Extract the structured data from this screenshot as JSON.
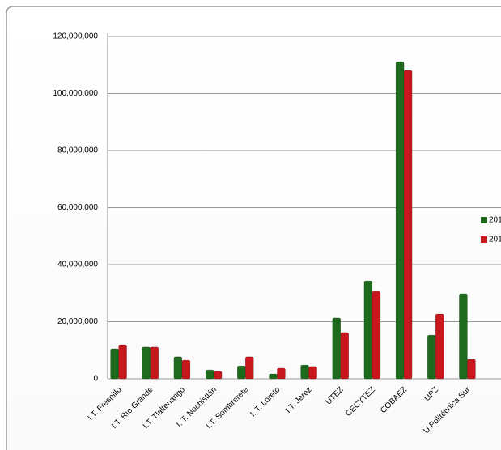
{
  "chart_data": {
    "type": "bar",
    "categories": [
      "I.T. Fresnillo",
      "I.T. Río Grande",
      "I.T. Tlaltenango",
      "I. T. Nochistlán",
      "I.T. Sombrerete",
      "I. T. Loreto",
      "I.T. Jerez",
      "UTEZ",
      "CECYTEZ",
      "COBAEZ",
      "UPZ",
      "U.Politécnica Sur"
    ],
    "series": [
      {
        "name": "201",
        "color": "#1e6b1e",
        "values": [
          10500000,
          11100000,
          7700000,
          3100000,
          4500000,
          1700000,
          4800000,
          21300000,
          34300000,
          111200000,
          15300000,
          29800000
        ]
      },
      {
        "name": "201",
        "color": "#c8181e",
        "values": [
          11900000,
          11100000,
          6500000,
          2600000,
          7700000,
          3700000,
          4300000,
          16200000,
          30600000,
          108100000,
          22700000,
          6800000
        ]
      }
    ],
    "ylim": [
      0,
      120000000
    ],
    "yticks": [
      0,
      {
        "value": 20000000,
        "label": "20,000,000"
      },
      {
        "value": 40000000,
        "label": "40,000,000"
      },
      {
        "value": 60000000,
        "label": "60,000,000"
      },
      {
        "value": 80000000,
        "label": "80,000,000"
      },
      {
        "value": 100000000,
        "label": "100,000,000"
      },
      {
        "value": 120000000,
        "label": "120,000,000"
      }
    ],
    "grid": true,
    "legend": "right"
  }
}
